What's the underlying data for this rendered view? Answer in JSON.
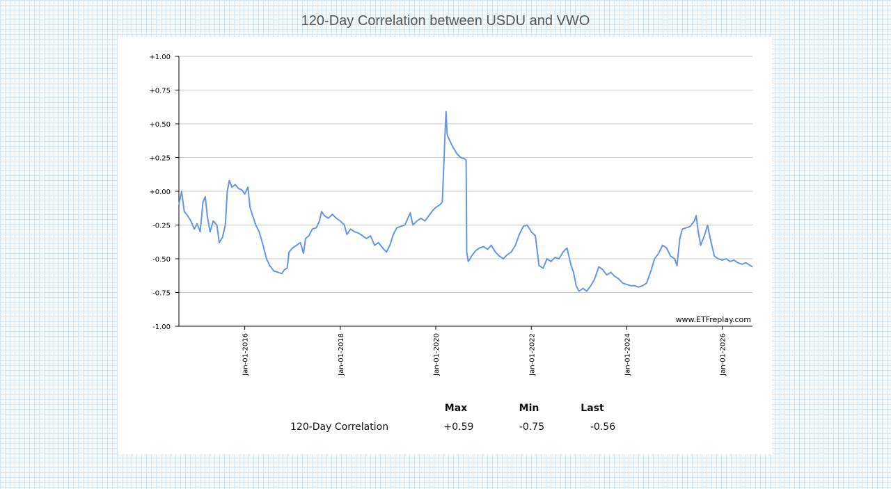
{
  "chart_data": {
    "type": "line",
    "title": "120-Day Correlation between USDU and VWO",
    "xlabel": "",
    "ylabel": "",
    "ylim": [
      -1.0,
      1.0
    ],
    "xlim": [
      "2014-08-15",
      "2026-08-20"
    ],
    "y_ticks": [
      "+1.00",
      "+0.75",
      "+0.50",
      "+0.25",
      "+0.00",
      "-0.25",
      "-0.50",
      "-0.75",
      "-1.00"
    ],
    "x_ticks": [
      {
        "date": "2016-01-01",
        "label": "Jan-01-2016"
      },
      {
        "date": "2018-01-01",
        "label": "Jan-01-2018"
      },
      {
        "date": "2020-01-01",
        "label": "Jan-01-2020"
      },
      {
        "date": "2022-01-01",
        "label": "Jan-01-2022"
      },
      {
        "date": "2024-01-01",
        "label": "Jan-01-2024"
      },
      {
        "date": "2026-01-01",
        "label": "Jan-01-2026"
      }
    ],
    "grid": true,
    "watermark": "www.ETFreplay.com",
    "line_color": "#6495ed",
    "series": [
      {
        "name": "120-Day Correlation",
        "points": [
          [
            "2014-08-15",
            -0.1
          ],
          [
            "2014-09-05",
            0.0
          ],
          [
            "2014-09-25",
            -0.15
          ],
          [
            "2014-10-20",
            -0.18
          ],
          [
            "2014-11-15",
            -0.22
          ],
          [
            "2014-12-10",
            -0.28
          ],
          [
            "2015-01-01",
            -0.24
          ],
          [
            "2015-01-25",
            -0.3
          ],
          [
            "2015-02-15",
            -0.08
          ],
          [
            "2015-03-05",
            -0.04
          ],
          [
            "2015-03-20",
            -0.18
          ],
          [
            "2015-04-10",
            -0.3
          ],
          [
            "2015-05-05",
            -0.22
          ],
          [
            "2015-06-01",
            -0.25
          ],
          [
            "2015-06-20",
            -0.38
          ],
          [
            "2015-07-15",
            -0.34
          ],
          [
            "2015-08-05",
            -0.25
          ],
          [
            "2015-08-20",
            0.0
          ],
          [
            "2015-09-05",
            0.08
          ],
          [
            "2015-09-25",
            0.03
          ],
          [
            "2015-10-20",
            0.05
          ],
          [
            "2015-11-15",
            0.02
          ],
          [
            "2015-12-10",
            0.01
          ],
          [
            "2016-01-01",
            -0.02
          ],
          [
            "2016-01-25",
            0.03
          ],
          [
            "2016-02-10",
            -0.12
          ],
          [
            "2016-03-01",
            -0.18
          ],
          [
            "2016-03-25",
            -0.25
          ],
          [
            "2016-04-20",
            -0.3
          ],
          [
            "2016-05-20",
            -0.4
          ],
          [
            "2016-06-15",
            -0.5
          ],
          [
            "2016-07-10",
            -0.55
          ],
          [
            "2016-08-10",
            -0.59
          ],
          [
            "2016-09-10",
            -0.6
          ],
          [
            "2016-10-10",
            -0.61
          ],
          [
            "2016-11-01",
            -0.58
          ],
          [
            "2016-11-20",
            -0.57
          ],
          [
            "2016-12-05",
            -0.45
          ],
          [
            "2017-01-01",
            -0.42
          ],
          [
            "2017-02-01",
            -0.4
          ],
          [
            "2017-03-01",
            -0.38
          ],
          [
            "2017-03-25",
            -0.46
          ],
          [
            "2017-04-10",
            -0.35
          ],
          [
            "2017-05-05",
            -0.33
          ],
          [
            "2017-06-01",
            -0.28
          ],
          [
            "2017-07-01",
            -0.27
          ],
          [
            "2017-07-25",
            -0.22
          ],
          [
            "2017-08-10",
            -0.15
          ],
          [
            "2017-09-01",
            -0.18
          ],
          [
            "2017-10-01",
            -0.2
          ],
          [
            "2017-11-01",
            -0.17
          ],
          [
            "2017-12-01",
            -0.2
          ],
          [
            "2018-01-01",
            -0.22
          ],
          [
            "2018-02-01",
            -0.25
          ],
          [
            "2018-02-20",
            -0.32
          ],
          [
            "2018-03-20",
            -0.28
          ],
          [
            "2018-04-20",
            -0.3
          ],
          [
            "2018-05-20",
            -0.31
          ],
          [
            "2018-06-20",
            -0.33
          ],
          [
            "2018-07-20",
            -0.35
          ],
          [
            "2018-08-20",
            -0.33
          ],
          [
            "2018-09-20",
            -0.4
          ],
          [
            "2018-10-20",
            -0.38
          ],
          [
            "2018-11-20",
            -0.42
          ],
          [
            "2018-12-20",
            -0.45
          ],
          [
            "2019-01-15",
            -0.4
          ],
          [
            "2019-02-10",
            -0.32
          ],
          [
            "2019-03-10",
            -0.27
          ],
          [
            "2019-04-10",
            -0.26
          ],
          [
            "2019-05-10",
            -0.25
          ],
          [
            "2019-06-01",
            -0.2
          ],
          [
            "2019-06-20",
            -0.16
          ],
          [
            "2019-07-10",
            -0.25
          ],
          [
            "2019-08-10",
            -0.22
          ],
          [
            "2019-09-10",
            -0.2
          ],
          [
            "2019-10-10",
            -0.22
          ],
          [
            "2019-11-10",
            -0.18
          ],
          [
            "2019-12-10",
            -0.14
          ],
          [
            "2020-01-01",
            -0.12
          ],
          [
            "2020-02-01",
            -0.1
          ],
          [
            "2020-02-20",
            -0.08
          ],
          [
            "2020-03-05",
            0.25
          ],
          [
            "2020-03-15",
            0.5
          ],
          [
            "2020-03-20",
            0.59
          ],
          [
            "2020-03-28",
            0.42
          ],
          [
            "2020-04-15",
            0.38
          ],
          [
            "2020-05-10",
            0.33
          ],
          [
            "2020-06-10",
            0.28
          ],
          [
            "2020-07-10",
            0.25
          ],
          [
            "2020-08-10",
            0.24
          ],
          [
            "2020-08-20",
            0.23
          ],
          [
            "2020-08-25",
            -0.45
          ],
          [
            "2020-09-05",
            -0.52
          ],
          [
            "2020-10-01",
            -0.48
          ],
          [
            "2020-11-01",
            -0.44
          ],
          [
            "2020-12-01",
            -0.42
          ],
          [
            "2021-01-01",
            -0.41
          ],
          [
            "2021-02-01",
            -0.43
          ],
          [
            "2021-03-01",
            -0.4
          ],
          [
            "2021-04-01",
            -0.45
          ],
          [
            "2021-05-01",
            -0.48
          ],
          [
            "2021-06-01",
            -0.5
          ],
          [
            "2021-07-01",
            -0.47
          ],
          [
            "2021-08-01",
            -0.45
          ],
          [
            "2021-09-01",
            -0.4
          ],
          [
            "2021-10-01",
            -0.32
          ],
          [
            "2021-11-01",
            -0.26
          ],
          [
            "2021-12-01",
            -0.25
          ],
          [
            "2022-01-01",
            -0.3
          ],
          [
            "2022-02-01",
            -0.33
          ],
          [
            "2022-03-01",
            -0.55
          ],
          [
            "2022-04-01",
            -0.57
          ],
          [
            "2022-05-01",
            -0.5
          ],
          [
            "2022-06-01",
            -0.52
          ],
          [
            "2022-07-01",
            -0.49
          ],
          [
            "2022-08-01",
            -0.5
          ],
          [
            "2022-09-01",
            -0.45
          ],
          [
            "2022-10-01",
            -0.42
          ],
          [
            "2022-11-01",
            -0.55
          ],
          [
            "2022-11-20",
            -0.6
          ],
          [
            "2022-12-10",
            -0.7
          ],
          [
            "2023-01-01",
            -0.74
          ],
          [
            "2023-02-01",
            -0.72
          ],
          [
            "2023-03-01",
            -0.74
          ],
          [
            "2023-04-01",
            -0.7
          ],
          [
            "2023-05-01",
            -0.65
          ],
          [
            "2023-06-01",
            -0.56
          ],
          [
            "2023-07-01",
            -0.58
          ],
          [
            "2023-08-01",
            -0.62
          ],
          [
            "2023-09-01",
            -0.6
          ],
          [
            "2023-10-01",
            -0.63
          ],
          [
            "2023-11-01",
            -0.65
          ],
          [
            "2023-12-01",
            -0.68
          ],
          [
            "2024-01-01",
            -0.69
          ],
          [
            "2024-02-01",
            -0.7
          ],
          [
            "2024-03-01",
            -0.7
          ],
          [
            "2024-04-01",
            -0.71
          ],
          [
            "2024-05-01",
            -0.7
          ],
          [
            "2024-06-01",
            -0.68
          ],
          [
            "2024-07-01",
            -0.6
          ],
          [
            "2024-08-01",
            -0.5
          ],
          [
            "2024-09-01",
            -0.46
          ],
          [
            "2024-10-01",
            -0.4
          ],
          [
            "2024-11-01",
            -0.42
          ],
          [
            "2024-12-01",
            -0.48
          ],
          [
            "2025-01-01",
            -0.5
          ],
          [
            "2025-01-20",
            -0.55
          ],
          [
            "2025-02-10",
            -0.35
          ],
          [
            "2025-03-01",
            -0.28
          ],
          [
            "2025-04-01",
            -0.27
          ],
          [
            "2025-05-01",
            -0.26
          ],
          [
            "2025-06-01",
            -0.22
          ],
          [
            "2025-06-15",
            -0.18
          ],
          [
            "2025-07-01",
            -0.3
          ],
          [
            "2025-07-20",
            -0.4
          ],
          [
            "2025-08-20",
            -0.32
          ],
          [
            "2025-09-10",
            -0.25
          ],
          [
            "2025-10-01",
            -0.35
          ],
          [
            "2025-11-01",
            -0.48
          ],
          [
            "2025-12-01",
            -0.5
          ],
          [
            "2026-01-01",
            -0.51
          ],
          [
            "2026-02-01",
            -0.5
          ],
          [
            "2026-03-01",
            -0.52
          ],
          [
            "2026-04-01",
            -0.51
          ],
          [
            "2026-05-01",
            -0.53
          ],
          [
            "2026-06-01",
            -0.54
          ],
          [
            "2026-07-01",
            -0.53
          ],
          [
            "2026-08-20",
            -0.56
          ]
        ]
      }
    ]
  },
  "stats": {
    "headers": {
      "max": "Max",
      "min": "Min",
      "last": "Last"
    },
    "row_label": "120-Day Correlation",
    "max": "+0.59",
    "min": "-0.75",
    "last": "-0.56"
  }
}
